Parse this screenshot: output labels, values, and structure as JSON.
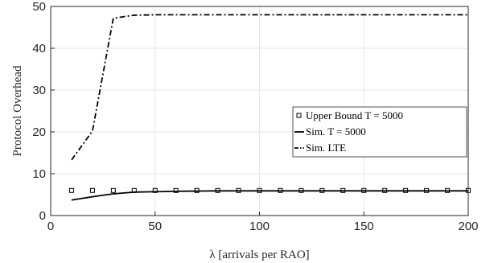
{
  "chart_data": {
    "type": "line",
    "xlabel": "λ [arrivals per RAO]",
    "ylabel": "Protocol Overhead",
    "xlim": [
      0,
      200
    ],
    "ylim": [
      0,
      50
    ],
    "xticks": [
      0,
      50,
      100,
      150,
      200
    ],
    "yticks": [
      0,
      10,
      20,
      30,
      40,
      50
    ],
    "grid": true,
    "legend_position": "right",
    "series": [
      {
        "name": "Upper Bound T = 5000",
        "style": "square-markers",
        "color": "#000000",
        "x": [
          10,
          20,
          30,
          40,
          50,
          60,
          70,
          80,
          90,
          100,
          110,
          120,
          130,
          140,
          150,
          160,
          170,
          180,
          190,
          200
        ],
        "y": [
          6.0,
          6.0,
          6.0,
          6.0,
          6.0,
          6.0,
          6.0,
          6.0,
          6.0,
          6.0,
          6.0,
          6.0,
          6.0,
          6.0,
          6.0,
          6.0,
          6.0,
          6.0,
          6.0,
          6.0
        ]
      },
      {
        "name": "Sim. T = 5000",
        "style": "solid",
        "color": "#000000",
        "x": [
          10,
          20,
          30,
          40,
          50,
          60,
          70,
          80,
          90,
          100,
          110,
          120,
          130,
          140,
          150,
          160,
          170,
          180,
          190,
          200
        ],
        "y": [
          3.7,
          4.5,
          5.2,
          5.6,
          5.7,
          5.8,
          5.85,
          5.9,
          5.9,
          5.9,
          5.9,
          5.9,
          5.9,
          5.9,
          5.9,
          5.9,
          5.9,
          5.9,
          5.9,
          5.9
        ]
      },
      {
        "name": "Sim. LTE",
        "style": "dashdot",
        "color": "#000000",
        "x": [
          10,
          20,
          30,
          40,
          50,
          60,
          70,
          80,
          90,
          100,
          110,
          120,
          130,
          140,
          150,
          160,
          170,
          180,
          190,
          200
        ],
        "y": [
          13.3,
          20.2,
          47.2,
          47.9,
          48.0,
          48.0,
          48.0,
          48.0,
          48.0,
          48.0,
          48.0,
          48.0,
          48.0,
          48.0,
          48.0,
          48.0,
          48.0,
          48.0,
          48.0,
          48.0
        ]
      }
    ]
  }
}
